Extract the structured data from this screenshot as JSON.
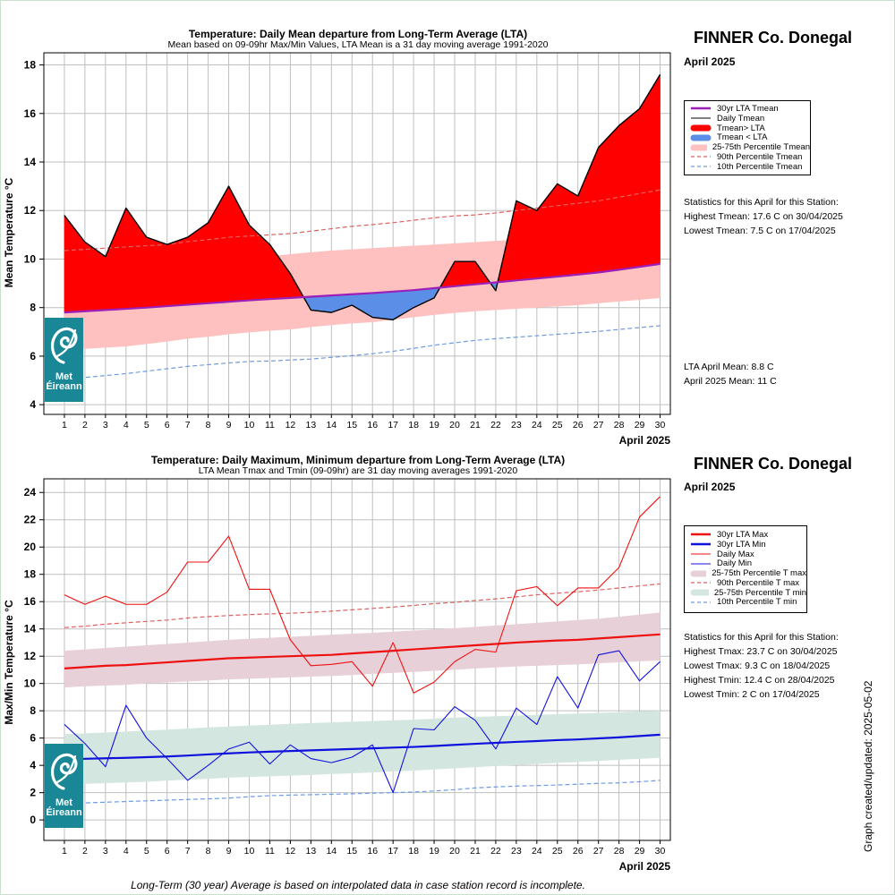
{
  "footer_note": "Long-Term (30 year) Average is based on interpolated data in case station record is incomplete.",
  "created_text": "Graph created/updated:  2025-05-02",
  "logo": {
    "line1": "Met",
    "line2": "Éireann"
  },
  "chart_data": [
    {
      "type": "line",
      "title": "Temperature: Daily Mean departure from Long-Term Average (LTA)",
      "subtitle": "Mean based on 09-09hr Max/Min Values, LTA Mean is a 31 day moving average 1991-2020",
      "station": "FINNER Co. Donegal",
      "month": "April 2025",
      "xlabel": "April 2025",
      "ylabel": "Mean Temperature °C",
      "x": [
        1,
        2,
        3,
        4,
        5,
        6,
        7,
        8,
        9,
        10,
        11,
        12,
        13,
        14,
        15,
        16,
        17,
        18,
        19,
        20,
        21,
        22,
        23,
        24,
        25,
        26,
        27,
        28,
        29,
        30
      ],
      "x_ticks": [
        "1",
        "2",
        "3",
        "4",
        "5",
        "6",
        "7",
        "8",
        "9",
        "10",
        "11",
        "12",
        "13",
        "14",
        "15",
        "16",
        "17",
        "18",
        "19",
        "20",
        "21",
        "22",
        "23",
        "24",
        "25",
        "26",
        "27",
        "28",
        "29",
        "30"
      ],
      "ylim": [
        3.6,
        18.5
      ],
      "y_ticks": [
        4,
        6,
        8,
        10,
        12,
        14,
        16,
        18
      ],
      "grid": true,
      "series": [
        {
          "name": "30yr LTA Tmean",
          "color": "#9b1fb8",
          "values": [
            7.8,
            7.85,
            7.9,
            7.95,
            8.0,
            8.06,
            8.12,
            8.18,
            8.24,
            8.3,
            8.35,
            8.4,
            8.45,
            8.5,
            8.55,
            8.6,
            8.66,
            8.72,
            8.8,
            8.88,
            8.96,
            9.04,
            9.12,
            9.2,
            9.28,
            9.36,
            9.45,
            9.56,
            9.68,
            9.8
          ]
        },
        {
          "name": "Daily Tmean",
          "color": "#000000",
          "values": [
            11.8,
            10.7,
            10.1,
            12.1,
            10.9,
            10.6,
            10.9,
            11.5,
            13.0,
            11.4,
            10.6,
            9.4,
            7.9,
            7.8,
            8.1,
            7.6,
            7.5,
            8.0,
            8.4,
            9.9,
            9.9,
            8.7,
            12.4,
            12.0,
            13.1,
            12.6,
            14.6,
            15.5,
            16.2,
            17.6
          ]
        },
        {
          "name": "25-75th Percentile Tmean",
          "color": "#ffc0c0",
          "lower": [
            6.25,
            6.3,
            6.35,
            6.4,
            6.5,
            6.6,
            6.72,
            6.8,
            6.9,
            6.98,
            7.05,
            7.1,
            7.2,
            7.28,
            7.35,
            7.4,
            7.5,
            7.6,
            7.7,
            7.78,
            7.85,
            7.9,
            7.95,
            8.0,
            8.05,
            8.1,
            8.18,
            8.25,
            8.32,
            8.4
          ],
          "upper": [
            9.5,
            9.55,
            9.6,
            9.65,
            9.7,
            9.8,
            9.88,
            9.95,
            10.0,
            10.08,
            10.12,
            10.2,
            10.28,
            10.35,
            10.4,
            10.45,
            10.5,
            10.55,
            10.6,
            10.65,
            10.7,
            10.75,
            10.8,
            10.85,
            10.9,
            10.95,
            11.02,
            11.1,
            11.18,
            11.3
          ]
        },
        {
          "name": "90th Percentile Tmean",
          "color": "#e06060",
          "values": [
            10.35,
            10.4,
            10.45,
            10.5,
            10.55,
            10.6,
            10.72,
            10.8,
            10.9,
            10.95,
            11.0,
            11.05,
            11.15,
            11.25,
            11.35,
            11.42,
            11.5,
            11.6,
            11.7,
            11.78,
            11.82,
            11.9,
            12.0,
            12.1,
            12.2,
            12.3,
            12.4,
            12.55,
            12.7,
            12.85
          ]
        },
        {
          "name": "10th Percentile Tmean",
          "color": "#6f9be0",
          "values": [
            5.05,
            5.12,
            5.2,
            5.28,
            5.38,
            5.48,
            5.58,
            5.65,
            5.72,
            5.78,
            5.8,
            5.84,
            5.88,
            5.95,
            6.02,
            6.1,
            6.2,
            6.32,
            6.45,
            6.55,
            6.65,
            6.72,
            6.78,
            6.84,
            6.9,
            6.96,
            7.02,
            7.1,
            7.18,
            7.25
          ]
        }
      ],
      "legend": [
        {
          "label": "30yr LTA Tmean",
          "style": "thick-line",
          "color": "#9b1fb8"
        },
        {
          "label": "Daily Tmean",
          "style": "line",
          "color": "#000000"
        },
        {
          "label": "Tmean> LTA",
          "style": "thick-bar",
          "color": "#ff0000"
        },
        {
          "label": "Tmean < LTA",
          "style": "thick-bar",
          "color": "#5b8ee6"
        },
        {
          "label": "25-75th Percentile Tmean",
          "style": "thick-bar",
          "color": "#ffc0c0"
        },
        {
          "label": "90th Percentile Tmean",
          "style": "dash",
          "color": "#e06060"
        },
        {
          "label": "10th Percentile Tmean",
          "style": "dash",
          "color": "#6f9be0"
        }
      ],
      "legend_position": "right",
      "stats": [
        "Statistics for this April for this Station:",
        "Highest Tmean: 17.6 C on 30/04/2025",
        "Lowest Tmean: 7.5 C on 17/04/2025"
      ],
      "means": [
        "LTA April Mean: 8.8 C",
        "April 2025 Mean: 11 C"
      ]
    },
    {
      "type": "line",
      "title": "Temperature: Daily Maximum, Minimum departure from Long-Term Average (LTA)",
      "subtitle": "LTA Mean Tmax and Tmin (09-09hr) are 31 day moving averages 1991-2020",
      "station": "FINNER Co. Donegal",
      "month": "April 2025",
      "xlabel": "April 2025",
      "ylabel": "Max/Min Temperature °C",
      "x": [
        1,
        2,
        3,
        4,
        5,
        6,
        7,
        8,
        9,
        10,
        11,
        12,
        13,
        14,
        15,
        16,
        17,
        18,
        19,
        20,
        21,
        22,
        23,
        24,
        25,
        26,
        27,
        28,
        29,
        30
      ],
      "x_ticks": [
        "1",
        "2",
        "3",
        "4",
        "5",
        "6",
        "7",
        "8",
        "9",
        "10",
        "11",
        "12",
        "13",
        "14",
        "15",
        "16",
        "17",
        "18",
        "19",
        "20",
        "21",
        "22",
        "23",
        "24",
        "25",
        "26",
        "27",
        "28",
        "29",
        "30"
      ],
      "ylim": [
        -1.5,
        25
      ],
      "y_ticks": [
        0,
        2,
        4,
        6,
        8,
        10,
        12,
        14,
        16,
        18,
        20,
        22,
        24
      ],
      "grid": true,
      "series": [
        {
          "name": "30yr LTA Max",
          "color": "#ee1111",
          "values": [
            11.1,
            11.2,
            11.3,
            11.35,
            11.45,
            11.55,
            11.65,
            11.75,
            11.85,
            11.9,
            11.95,
            12.0,
            12.05,
            12.1,
            12.2,
            12.3,
            12.4,
            12.5,
            12.6,
            12.7,
            12.8,
            12.9,
            13.0,
            13.08,
            13.15,
            13.2,
            13.3,
            13.4,
            13.5,
            13.6
          ]
        },
        {
          "name": "30yr LTA Min",
          "color": "#1111dd",
          "values": [
            4.45,
            4.48,
            4.52,
            4.55,
            4.6,
            4.65,
            4.72,
            4.8,
            4.88,
            4.95,
            5.0,
            5.05,
            5.1,
            5.15,
            5.2,
            5.25,
            5.3,
            5.35,
            5.42,
            5.5,
            5.58,
            5.65,
            5.72,
            5.78,
            5.85,
            5.9,
            5.98,
            6.05,
            6.15,
            6.25
          ]
        },
        {
          "name": "Daily Max",
          "color": "#ee1111",
          "values": [
            16.5,
            15.8,
            16.4,
            15.8,
            15.8,
            16.7,
            18.9,
            18.9,
            20.8,
            16.9,
            16.9,
            13.2,
            11.3,
            11.4,
            11.6,
            9.8,
            13.0,
            9.3,
            10.1,
            11.6,
            12.5,
            12.3,
            16.8,
            17.1,
            15.7,
            17.0,
            17.0,
            18.5,
            22.2,
            23.7
          ]
        },
        {
          "name": "Daily Min",
          "color": "#1111dd",
          "values": [
            7.0,
            5.6,
            3.9,
            8.4,
            6.0,
            4.5,
            2.9,
            4.0,
            5.2,
            5.7,
            4.1,
            5.5,
            4.5,
            4.2,
            4.6,
            5.5,
            2.0,
            6.7,
            6.6,
            8.3,
            7.3,
            5.2,
            8.2,
            7.0,
            10.5,
            8.2,
            12.1,
            12.4,
            10.2,
            11.6
          ]
        },
        {
          "name": "25-75th Percentile T max",
          "color": "#e8d0d8",
          "lower": [
            9.7,
            9.8,
            9.85,
            9.9,
            10.0,
            10.08,
            10.15,
            10.22,
            10.3,
            10.35,
            10.4,
            10.45,
            10.5,
            10.55,
            10.62,
            10.7,
            10.78,
            10.85,
            10.92,
            11.0,
            11.1,
            11.18,
            11.25,
            11.3,
            11.35,
            11.4,
            11.48,
            11.55,
            11.62,
            11.7
          ],
          "upper": [
            12.4,
            12.5,
            12.6,
            12.7,
            12.8,
            12.9,
            13.0,
            13.1,
            13.2,
            13.28,
            13.35,
            13.42,
            13.5,
            13.58,
            13.65,
            13.72,
            13.8,
            13.88,
            13.95,
            14.05,
            14.15,
            14.25,
            14.35,
            14.45,
            14.55,
            14.65,
            14.75,
            14.9,
            15.05,
            15.2
          ]
        },
        {
          "name": "90th Percentile T max",
          "color": "#e06060",
          "values": [
            14.1,
            14.2,
            14.35,
            14.45,
            14.55,
            14.65,
            14.8,
            14.9,
            14.98,
            15.05,
            15.1,
            15.15,
            15.22,
            15.3,
            15.4,
            15.5,
            15.6,
            15.72,
            15.85,
            15.95,
            16.08,
            16.2,
            16.35,
            16.5,
            16.62,
            16.72,
            16.85,
            17.0,
            17.15,
            17.3
          ]
        },
        {
          "name": "25-75th Percentile T min",
          "color": "#d4e6e0",
          "lower": [
            2.6,
            2.65,
            2.7,
            2.75,
            2.8,
            2.88,
            2.95,
            3.02,
            3.1,
            3.15,
            3.2,
            3.25,
            3.3,
            3.36,
            3.42,
            3.48,
            3.55,
            3.62,
            3.7,
            3.78,
            3.86,
            3.95,
            4.02,
            4.1,
            4.18,
            4.25,
            4.32,
            4.4,
            4.48,
            4.55
          ],
          "upper": [
            6.3,
            6.35,
            6.4,
            6.48,
            6.55,
            6.62,
            6.7,
            6.78,
            6.85,
            6.92,
            6.98,
            7.04,
            7.1,
            7.15,
            7.2,
            7.25,
            7.3,
            7.35,
            7.42,
            7.5,
            7.55,
            7.6,
            7.65,
            7.7,
            7.75,
            7.8,
            7.85,
            7.9,
            7.95,
            8.0
          ]
        },
        {
          "name": "10th Percentile T min",
          "color": "#6f9be0",
          "values": [
            1.2,
            1.25,
            1.3,
            1.35,
            1.4,
            1.45,
            1.5,
            1.55,
            1.6,
            1.7,
            1.78,
            1.82,
            1.85,
            1.88,
            1.92,
            1.96,
            2.0,
            2.05,
            2.12,
            2.22,
            2.35,
            2.42,
            2.48,
            2.52,
            2.56,
            2.62,
            2.68,
            2.72,
            2.8,
            2.9
          ]
        }
      ],
      "legend": [
        {
          "label": "30yr LTA Max",
          "style": "thick-line",
          "color": "#ee1111"
        },
        {
          "label": "30yr LTA Min",
          "style": "thick-line",
          "color": "#1111dd"
        },
        {
          "label": "Daily Max",
          "style": "line",
          "color": "#ee1111"
        },
        {
          "label": "Daily Min",
          "style": "line",
          "color": "#1111dd"
        },
        {
          "label": "25-75th Percentile T max",
          "style": "thick-bar",
          "color": "#e8d0d8"
        },
        {
          "label": "90th Percentile T max",
          "style": "dash",
          "color": "#e06060"
        },
        {
          "label": "25-75th Percentile T min",
          "style": "thick-bar",
          "color": "#d4e6e0"
        },
        {
          "label": "10th Percentile T min",
          "style": "dash",
          "color": "#6f9be0"
        }
      ],
      "legend_position": "right",
      "stats": [
        "Statistics for this April for this Station:",
        "Highest Tmax: 23.7 C on 30/04/2025",
        "Lowest Tmax: 9.3 C on 18/04/2025",
        "Highest Tmin: 12.4 C on 28/04/2025",
        "Lowest Tmin: 2 C on 17/04/2025"
      ]
    }
  ]
}
